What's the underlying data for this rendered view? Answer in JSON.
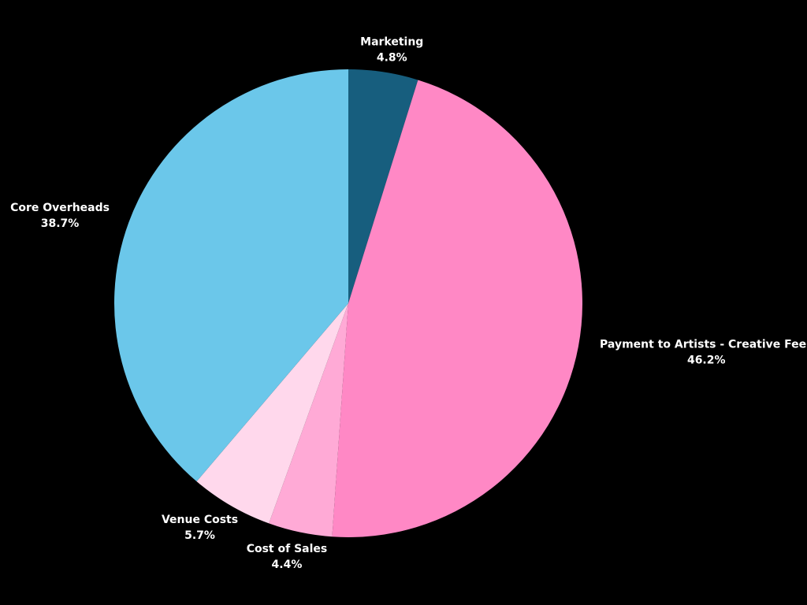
{
  "chart_data": {
    "type": "pie",
    "categories": [
      "Marketing",
      "Payment to Artists - Creative Fees",
      "Cost of Sales",
      "Venue Costs",
      "Core Overheads"
    ],
    "values": [
      4.8,
      46.2,
      4.4,
      5.7,
      38.7
    ],
    "value_labels": [
      "4.8%",
      "46.2%",
      "4.4%",
      "5.7%",
      "38.7%"
    ],
    "colors": [
      "#175e7e",
      "#ff88c5",
      "#ffaad6",
      "#ffd8ec",
      "#6bc7ea"
    ]
  }
}
